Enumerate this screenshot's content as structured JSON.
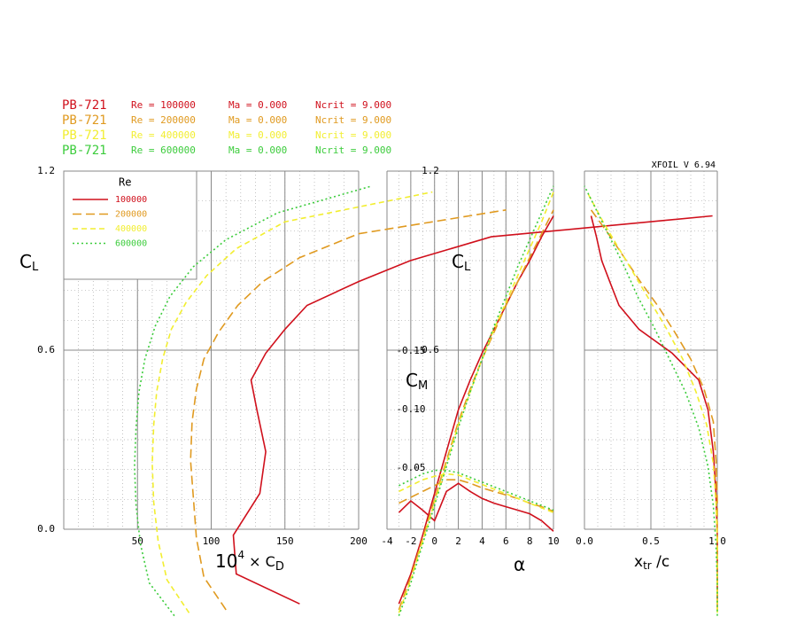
{
  "chart_data": {
    "type": "line",
    "version": "XFOIL V 6.94",
    "header": [
      {
        "airfoil": "PB-721",
        "re": "Re = 100000",
        "ma": "Ma = 0.000",
        "ncrit": "Ncrit = 9.000"
      },
      {
        "airfoil": "PB-721",
        "re": "Re = 200000",
        "ma": "Ma = 0.000",
        "ncrit": "Ncrit = 9.000"
      },
      {
        "airfoil": "PB-721",
        "re": "Re = 400000",
        "ma": "Ma = 0.000",
        "ncrit": "Ncrit = 9.000"
      },
      {
        "airfoil": "PB-721",
        "re": "Re = 600000",
        "ma": "Ma = 0.000",
        "ncrit": "Ncrit = 9.000"
      }
    ],
    "legend_title": "Re",
    "cl_label": {
      "main": "C",
      "sub": "L"
    },
    "cd_label": {
      "pre": "10",
      "sup": "4",
      "mid": " × C",
      "sub": "D"
    },
    "alpha_label": "α",
    "cm_label": {
      "main": "C",
      "sub": "M"
    },
    "xtr_label": {
      "main": "x",
      "sub": "tr",
      "post": " /c"
    },
    "ylim": [
      0,
      1.2
    ],
    "yticks": [
      {
        "value": 0,
        "label": "0.0"
      },
      {
        "value": 0.6,
        "label": "0.6"
      },
      {
        "value": 1.2,
        "label": "1.2"
      }
    ],
    "yminor": 0.1,
    "cdlim": [
      0,
      200
    ],
    "cdticks": [
      50,
      100,
      150,
      200
    ],
    "cdminor": 10,
    "alphalim": [
      -4,
      10
    ],
    "alphaticks": [
      -4,
      -2,
      0,
      2,
      4,
      6,
      8,
      10
    ],
    "alphaminor": 1,
    "cmlim": [
      0,
      -0.3
    ],
    "cmticks": [
      -0.15,
      {
        "value": -0.1,
        "label": "-0.10"
      },
      -0.05
    ],
    "xtrlim": [
      0,
      1
    ],
    "xtrticks": [
      {
        "value": 0,
        "label": "0.0"
      },
      0.5,
      {
        "value": 1,
        "label": "1.0"
      }
    ],
    "xtrminor": 0.1,
    "series": [
      {
        "name": "100000",
        "color": "#d0101c",
        "dash": "none",
        "alpha": [
          -3,
          -2,
          -1,
          0,
          1,
          2,
          3,
          4,
          5,
          6,
          7,
          8,
          9,
          10
        ],
        "cl": [
          -0.25,
          -0.15,
          -0.02,
          0.12,
          0.26,
          0.4,
          0.5,
          0.59,
          0.67,
          0.75,
          0.83,
          0.9,
          0.98,
          1.05
        ],
        "cd": [
          160,
          117,
          115,
          133,
          137,
          131,
          127,
          137,
          150,
          165,
          200,
          235,
          290,
          440
        ],
        "cm": [
          -0.012,
          -0.022,
          -0.014,
          -0.005,
          -0.03,
          -0.037,
          -0.03,
          -0.024,
          -0.02,
          -0.017,
          -0.014,
          -0.011,
          -0.005,
          0.004
        ],
        "xtr": [
          1.0,
          1.0,
          1.0,
          0.99,
          0.97,
          0.93,
          0.86,
          0.66,
          0.41,
          0.26,
          0.19,
          0.13,
          0.09,
          0.05
        ]
      },
      {
        "name": "200000",
        "color": "#e09a20",
        "dash": "10 5",
        "alpha": [
          -3,
          -2,
          -1,
          0,
          1,
          2,
          3,
          4,
          5,
          6,
          7,
          8,
          9,
          10
        ],
        "cl": [
          -0.27,
          -0.16,
          -0.03,
          0.1,
          0.23,
          0.36,
          0.47,
          0.57,
          0.66,
          0.75,
          0.83,
          0.91,
          0.99,
          1.07
        ],
        "cd": [
          110,
          95,
          90,
          88,
          86,
          87,
          90,
          95,
          105,
          118,
          135,
          160,
          200,
          300
        ],
        "cm": [
          -0.02,
          -0.025,
          -0.03,
          -0.035,
          -0.04,
          -0.04,
          -0.037,
          -0.033,
          -0.03,
          -0.027,
          -0.024,
          -0.02,
          -0.017,
          -0.013
        ],
        "xtr": [
          1.0,
          1.0,
          1.0,
          1.0,
          0.99,
          0.97,
          0.9,
          0.8,
          0.68,
          0.55,
          0.42,
          0.3,
          0.18,
          0.05
        ]
      },
      {
        "name": "400000",
        "color": "#f2ee30",
        "dash": "6 4",
        "alpha": [
          -3,
          -2,
          -1,
          0,
          1,
          2,
          3,
          4,
          5,
          6,
          7,
          8,
          9,
          10
        ],
        "cl": [
          -0.28,
          -0.17,
          -0.04,
          0.09,
          0.22,
          0.35,
          0.46,
          0.57,
          0.67,
          0.76,
          0.85,
          0.94,
          1.03,
          1.13
        ],
        "cd": [
          85,
          70,
          64,
          61,
          60,
          61,
          63,
          67,
          73,
          83,
          97,
          117,
          150,
          250
        ],
        "cm": [
          -0.03,
          -0.035,
          -0.04,
          -0.043,
          -0.045,
          -0.044,
          -0.04,
          -0.036,
          -0.032,
          -0.028,
          -0.024,
          -0.02,
          -0.016,
          -0.012
        ],
        "xtr": [
          1.0,
          1.0,
          1.0,
          0.99,
          0.97,
          0.92,
          0.84,
          0.74,
          0.62,
          0.5,
          0.38,
          0.26,
          0.14,
          0.02
        ]
      },
      {
        "name": "600000",
        "color": "#3ccc3c",
        "dash": "2 3",
        "alpha": [
          -3,
          -2,
          -1,
          0,
          1,
          2,
          3,
          4,
          5,
          6,
          7,
          8,
          9,
          10
        ],
        "cl": [
          -0.29,
          -0.18,
          -0.05,
          0.08,
          0.21,
          0.34,
          0.46,
          0.57,
          0.68,
          0.78,
          0.88,
          0.97,
          1.06,
          1.15
        ],
        "cd": [
          75,
          58,
          52,
          49,
          48,
          49,
          51,
          55,
          62,
          72,
          88,
          110,
          145,
          209
        ],
        "cm": [
          -0.035,
          -0.04,
          -0.045,
          -0.048,
          -0.048,
          -0.046,
          -0.042,
          -0.038,
          -0.034,
          -0.03,
          -0.026,
          -0.022,
          -0.018,
          -0.014
        ],
        "xtr": [
          1.0,
          1.0,
          0.99,
          0.97,
          0.93,
          0.86,
          0.76,
          0.64,
          0.52,
          0.4,
          0.3,
          0.2,
          0.1,
          0.0
        ]
      }
    ]
  }
}
